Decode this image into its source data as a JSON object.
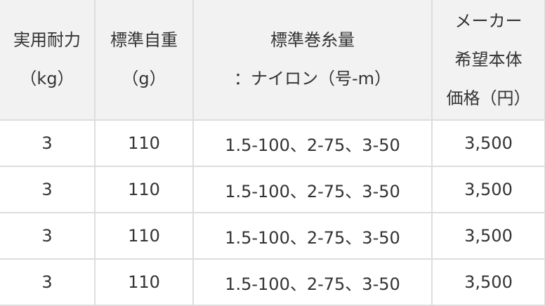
{
  "table": {
    "headers": [
      {
        "lines": [
          "実用耐力",
          "（kg）"
        ]
      },
      {
        "lines": [
          "標準自重",
          "（g）"
        ]
      },
      {
        "lines": [
          "標準巻糸量",
          "：ナイロン（号-m）"
        ]
      },
      {
        "lines": [
          "メーカー",
          "希望本体",
          "価格（円）"
        ]
      }
    ],
    "rows": [
      [
        "3",
        "110",
        "1.5-100、2-75、3-50",
        "3,500"
      ],
      [
        "3",
        "110",
        "1.5-100、2-75、3-50",
        "3,500"
      ],
      [
        "3",
        "110",
        "1.5-100、2-75、3-50",
        "3,500"
      ],
      [
        "3",
        "110",
        "1.5-100、2-75、3-50",
        "3,500"
      ]
    ]
  }
}
